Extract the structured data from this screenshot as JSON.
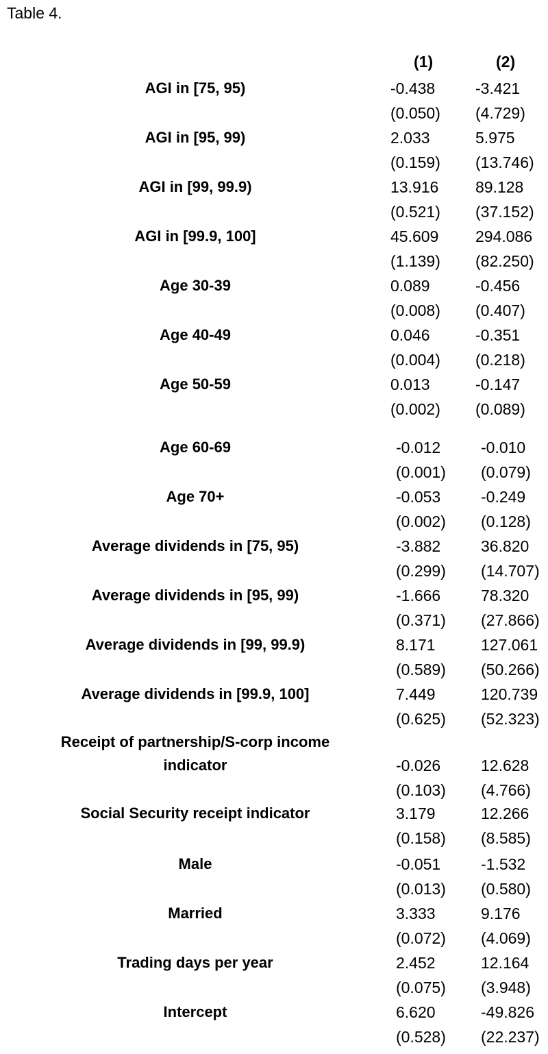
{
  "caption": "Table 4.",
  "headers": [
    "(1)",
    "(2)"
  ],
  "rows": [
    {
      "label": [
        "AGI in [75, 95)"
      ],
      "c1": "-0.438",
      "c2": "-3.421",
      "se1": "(0.050)",
      "se2": "(4.729)"
    },
    {
      "label": [
        "AGI in [95, 99)"
      ],
      "c1": "2.033",
      "c2": "5.975",
      "se1": "(0.159)",
      "se2": "(13.746)"
    },
    {
      "label": [
        "AGI in [99, 99.9)"
      ],
      "c1": "13.916",
      "c2": "89.128",
      "se1": "(0.521)",
      "se2": "(37.152)"
    },
    {
      "label": [
        "AGI in [99.9, 100]"
      ],
      "c1": "45.609",
      "c2": "294.086",
      "se1": "(1.139)",
      "se2": "(82.250)"
    },
    {
      "label": [
        "Age 30-39"
      ],
      "c1": "0.089",
      "c2": "-0.456",
      "se1": "(0.008)",
      "se2": "(0.407)"
    },
    {
      "label": [
        "Age 40-49"
      ],
      "c1": "0.046",
      "c2": "-0.351",
      "se1": "(0.004)",
      "se2": "(0.218)"
    },
    {
      "label": [
        "Age 50-59"
      ],
      "c1": "0.013",
      "c2": "-0.147",
      "se1": "(0.002)",
      "se2": "(0.089)"
    },
    {
      "label": [
        "Age 60-69"
      ],
      "c1": "-0.012",
      "c2": "-0.010",
      "se1": "(0.001)",
      "se2": "(0.079)"
    },
    {
      "label": [
        "Age 70+"
      ],
      "c1": "-0.053",
      "c2": "-0.249",
      "se1": "(0.002)",
      "se2": "(0.128)"
    },
    {
      "label": [
        "Average dividends in [75, 95)"
      ],
      "c1": "-3.882",
      "c2": "36.820",
      "se1": "(0.299)",
      "se2": "(14.707)"
    },
    {
      "label": [
        "Average dividends in [95, 99)"
      ],
      "c1": "-1.666",
      "c2": "78.320",
      "se1": "(0.371)",
      "se2": "(27.866)"
    },
    {
      "label": [
        "Average dividends in [99, 99.9)"
      ],
      "c1": "8.171",
      "c2": "127.061",
      "se1": "(0.589)",
      "se2": "(50.266)"
    },
    {
      "label": [
        "Average dividends in [99.9, 100]"
      ],
      "c1": "7.449",
      "c2": "120.739",
      "se1": "(0.625)",
      "se2": "(52.323)"
    },
    {
      "label": [
        "Receipt of partnership/S-corp income",
        "indicator"
      ],
      "c1": "-0.026",
      "c2": "12.628",
      "se1": "(0.103)",
      "se2": "(4.766)"
    },
    {
      "label": [
        "Social Security receipt indicator"
      ],
      "c1": "3.179",
      "c2": "12.266",
      "se1": "(0.158)",
      "se2": "(8.585)"
    },
    {
      "label": [
        "Male"
      ],
      "c1": "-0.051",
      "c2": "-1.532",
      "se1": "(0.013)",
      "se2": "(0.580)"
    },
    {
      "label": [
        "Married"
      ],
      "c1": "3.333",
      "c2": "9.176",
      "se1": "(0.072)",
      "se2": "(4.069)"
    },
    {
      "label": [
        "Trading days per year"
      ],
      "c1": "2.452",
      "c2": "12.164",
      "se1": "(0.075)",
      "se2": "(3.948)"
    },
    {
      "label": [
        "Intercept"
      ],
      "c1": "6.620",
      "c2": "-49.826",
      "se1": "(0.528)",
      "se2": "(22.237)"
    }
  ]
}
